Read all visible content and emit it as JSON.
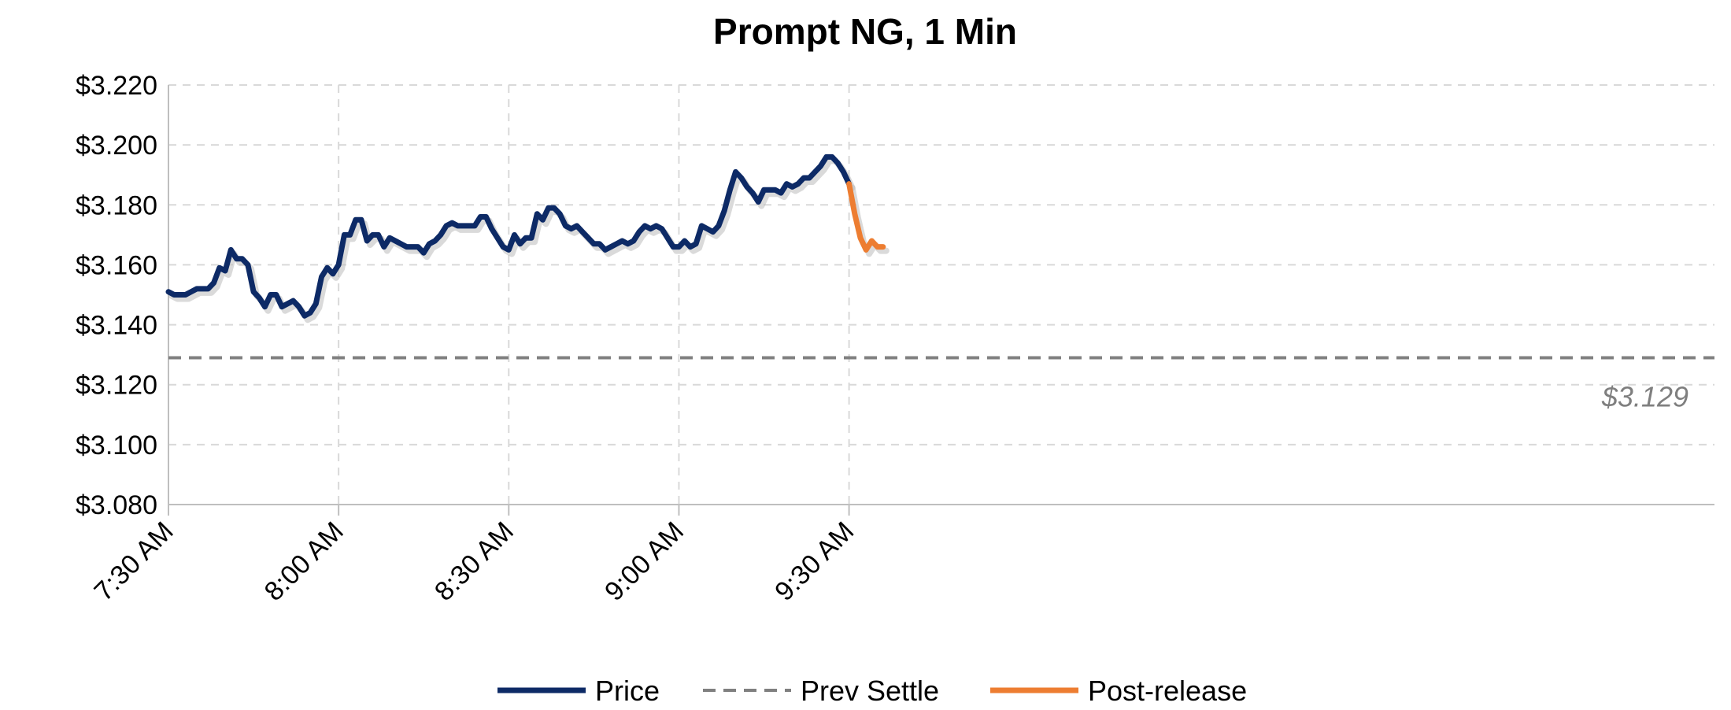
{
  "chart_data": {
    "type": "line",
    "title": "Prompt NG, 1 Min",
    "ylim": [
      3.08,
      3.22
    ],
    "yticks": [
      3.08,
      3.1,
      3.12,
      3.14,
      3.16,
      3.18,
      3.2,
      3.22
    ],
    "ytick_labels": [
      "$3.080",
      "$3.100",
      "$3.120",
      "$3.140",
      "$3.160",
      "$3.180",
      "$3.200",
      "$3.220"
    ],
    "xlim": [
      "7:30 AM",
      "9:45 AM"
    ],
    "xticks": [
      "7:30 AM",
      "8:00 AM",
      "8:30 AM",
      "9:00 AM",
      "9:30 AM"
    ],
    "grid": true,
    "legend_position": "bottom",
    "series": [
      {
        "name": "Price",
        "color": "#0d2a66",
        "x": [
          "7:30 AM",
          "7:31 AM",
          "7:32 AM",
          "7:33 AM",
          "7:34 AM",
          "7:35 AM",
          "7:36 AM",
          "7:37 AM",
          "7:38 AM",
          "7:39 AM",
          "7:40 AM",
          "7:41 AM",
          "7:42 AM",
          "7:43 AM",
          "7:44 AM",
          "7:45 AM",
          "7:46 AM",
          "7:47 AM",
          "7:48 AM",
          "7:49 AM",
          "7:50 AM",
          "7:51 AM",
          "7:52 AM",
          "7:53 AM",
          "7:54 AM",
          "7:55 AM",
          "7:56 AM",
          "7:57 AM",
          "7:58 AM",
          "7:59 AM",
          "8:00 AM",
          "8:01 AM",
          "8:02 AM",
          "8:03 AM",
          "8:04 AM",
          "8:05 AM",
          "8:06 AM",
          "8:07 AM",
          "8:08 AM",
          "8:09 AM",
          "8:10 AM",
          "8:11 AM",
          "8:12 AM",
          "8:13 AM",
          "8:14 AM",
          "8:15 AM",
          "8:16 AM",
          "8:17 AM",
          "8:18 AM",
          "8:19 AM",
          "8:20 AM",
          "8:21 AM",
          "8:22 AM",
          "8:23 AM",
          "8:24 AM",
          "8:25 AM",
          "8:26 AM",
          "8:27 AM",
          "8:28 AM",
          "8:29 AM",
          "8:30 AM",
          "8:31 AM",
          "8:32 AM",
          "8:33 AM",
          "8:34 AM",
          "8:35 AM",
          "8:36 AM",
          "8:37 AM",
          "8:38 AM",
          "8:39 AM",
          "8:40 AM",
          "8:41 AM",
          "8:42 AM",
          "8:43 AM",
          "8:44 AM",
          "8:45 AM",
          "8:46 AM",
          "8:47 AM",
          "8:48 AM",
          "8:49 AM",
          "8:50 AM",
          "8:51 AM",
          "8:52 AM",
          "8:53 AM",
          "8:54 AM",
          "8:55 AM",
          "8:56 AM",
          "8:57 AM",
          "8:58 AM",
          "8:59 AM",
          "9:00 AM",
          "9:01 AM",
          "9:02 AM",
          "9:03 AM",
          "9:04 AM",
          "9:05 AM",
          "9:06 AM",
          "9:07 AM",
          "9:08 AM",
          "9:09 AM",
          "9:10 AM",
          "9:11 AM",
          "9:12 AM",
          "9:13 AM",
          "9:14 AM",
          "9:15 AM",
          "9:16 AM",
          "9:17 AM",
          "9:18 AM",
          "9:19 AM",
          "9:20 AM",
          "9:21 AM",
          "9:22 AM",
          "9:23 AM",
          "9:24 AM",
          "9:25 AM",
          "9:26 AM",
          "9:27 AM",
          "9:28 AM",
          "9:29 AM",
          "9:30 AM"
        ],
        "values": [
          3.151,
          3.15,
          3.15,
          3.15,
          3.151,
          3.152,
          3.152,
          3.152,
          3.154,
          3.159,
          3.158,
          3.165,
          3.162,
          3.162,
          3.16,
          3.151,
          3.149,
          3.146,
          3.15,
          3.15,
          3.146,
          3.147,
          3.148,
          3.146,
          3.143,
          3.144,
          3.147,
          3.156,
          3.159,
          3.157,
          3.16,
          3.17,
          3.17,
          3.175,
          3.175,
          3.168,
          3.17,
          3.17,
          3.166,
          3.169,
          3.168,
          3.167,
          3.166,
          3.166,
          3.166,
          3.164,
          3.167,
          3.168,
          3.17,
          3.173,
          3.174,
          3.173,
          3.173,
          3.173,
          3.173,
          3.176,
          3.176,
          3.172,
          3.169,
          3.166,
          3.165,
          3.17,
          3.167,
          3.169,
          3.169,
          3.177,
          3.175,
          3.179,
          3.179,
          3.177,
          3.173,
          3.172,
          3.173,
          3.171,
          3.169,
          3.167,
          3.167,
          3.165,
          3.166,
          3.167,
          3.168,
          3.167,
          3.168,
          3.171,
          3.173,
          3.172,
          3.173,
          3.172,
          3.169,
          3.166,
          3.166,
          3.168,
          3.166,
          3.167,
          3.173,
          3.172,
          3.171,
          3.173,
          3.178,
          3.185,
          3.191,
          3.189,
          3.186,
          3.184,
          3.181,
          3.185,
          3.185,
          3.185,
          3.184,
          3.187,
          3.186,
          3.187,
          3.189,
          3.189,
          3.191,
          3.193,
          3.196,
          3.196,
          3.194,
          3.191,
          3.187
        ]
      },
      {
        "name": "Prev Settle",
        "color": "#808080",
        "dashed": true,
        "x": [
          "7:30 AM",
          "9:45 AM"
        ],
        "values": [
          3.129,
          3.129
        ]
      },
      {
        "name": "Post-release",
        "color": "#ed7d31",
        "x": [
          "9:30 AM",
          "9:31 AM",
          "9:32 AM",
          "9:33 AM",
          "9:34 AM",
          "9:35 AM",
          "9:36 AM"
        ],
        "values": [
          3.187,
          3.177,
          3.169,
          3.165,
          3.168,
          3.166,
          3.166
        ]
      }
    ],
    "annotations": [
      {
        "text": "$3.129",
        "value": 3.129
      }
    ]
  }
}
